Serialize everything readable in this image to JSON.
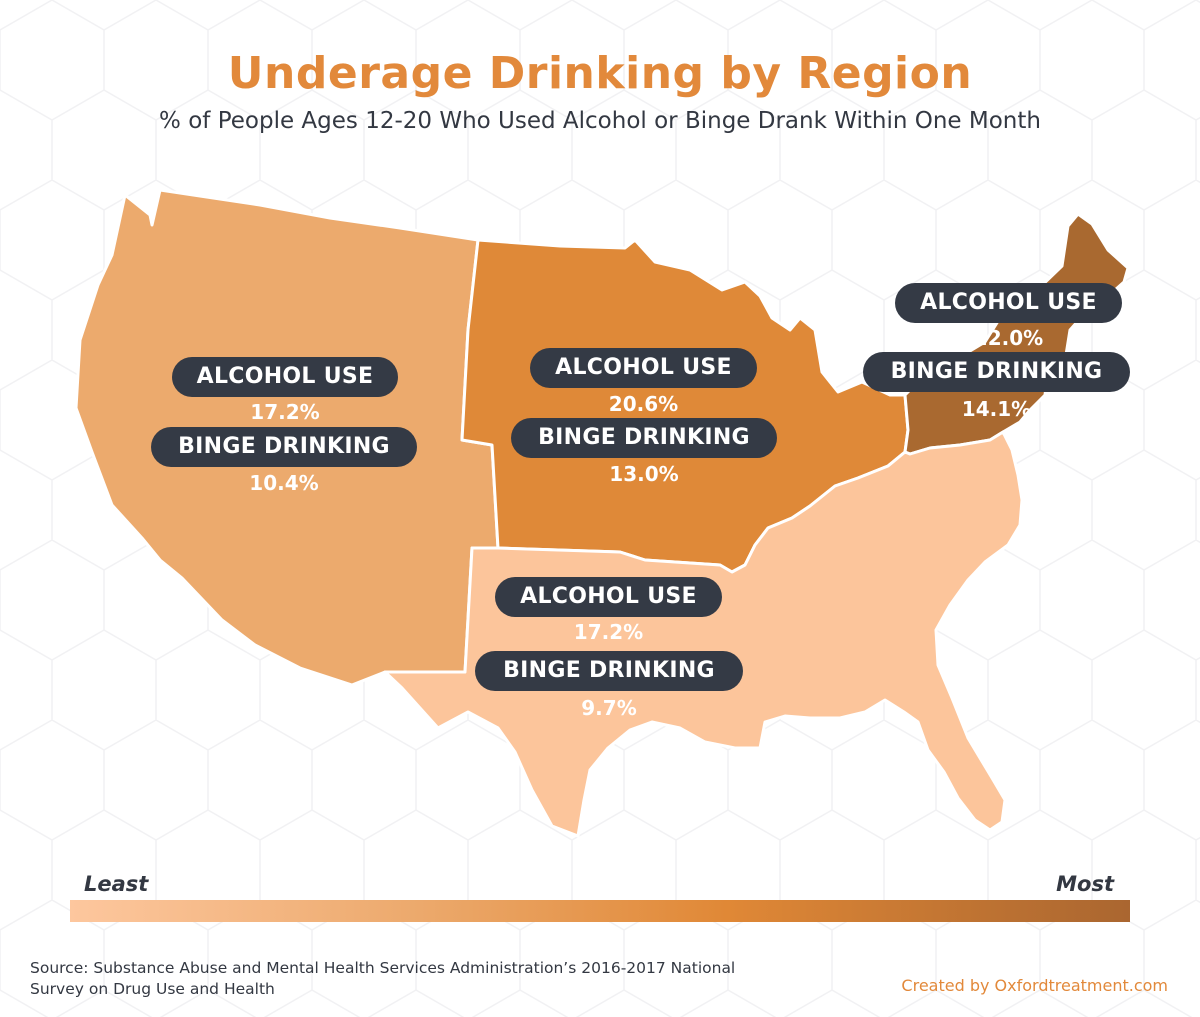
{
  "title": "Underage Drinking by Region",
  "subtitle": "% of People Ages 12-20 Who Used Alcohol or Binge Drank Within One Month",
  "regions": {
    "west": {
      "alcohol_label": "ALCOHOL USE",
      "alcohol_value": "17.2%",
      "binge_label": "BINGE DRINKING",
      "binge_value": "10.4%",
      "color": "#ecaa6d"
    },
    "midwest": {
      "alcohol_label": "ALCOHOL USE",
      "alcohol_value": "20.6%",
      "binge_label": "BINGE DRINKING",
      "binge_value": "13.0%",
      "color": "#df8938"
    },
    "northeast": {
      "alcohol_label": "ALCOHOL USE",
      "alcohol_value": "22.0%",
      "binge_label": "BINGE DRINKING",
      "binge_value": "14.1%",
      "color": "#a96930"
    },
    "south": {
      "alcohol_label": "ALCOHOL USE",
      "alcohol_value": "17.2%",
      "binge_label": "BINGE DRINKING",
      "binge_value": "9.7%",
      "color": "#fcc59b"
    }
  },
  "legend": {
    "least": "Least",
    "most": "Most",
    "start_color": "#fdc79e",
    "end_color": "#aa6630"
  },
  "source": "Source: Substance Abuse and Mental Health Services Administration’s 2016-2017 National Survey on Drug Use and Health",
  "credit": "Created by Oxfordtreatment.com",
  "colors": {
    "title": "#e2893b",
    "label_pill": "#343a45",
    "text_dark": "#333842"
  }
}
